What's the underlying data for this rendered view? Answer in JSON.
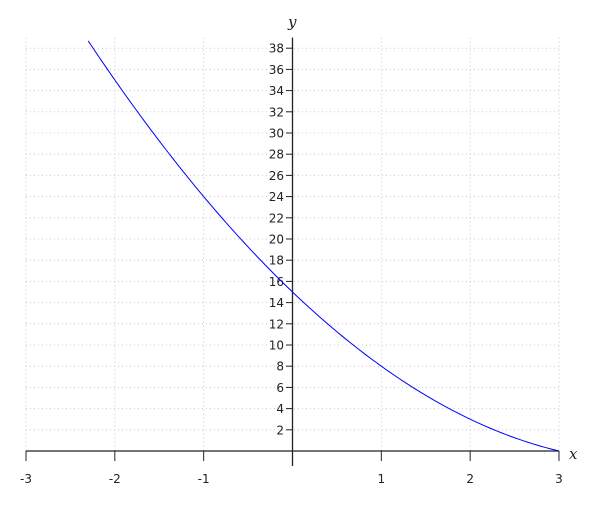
{
  "chart_data": {
    "type": "line",
    "title": "",
    "xlabel": "x",
    "ylabel": "y",
    "xlim": [
      -3,
      3
    ],
    "ylim": [
      0,
      39
    ],
    "grid": true,
    "x_ticks": [
      -3,
      -2,
      -1,
      1,
      2,
      3
    ],
    "y_ticks": [
      2,
      4,
      6,
      8,
      10,
      12,
      14,
      16,
      18,
      20,
      22,
      24,
      26,
      28,
      30,
      32,
      34,
      36,
      38
    ],
    "series": [
      {
        "color": "#0000ff",
        "x": [
          -2.3,
          -2,
          -1.5,
          -1,
          -0.5,
          0,
          0.5,
          1,
          1.5,
          2,
          2.5,
          3
        ],
        "y": [
          38.69,
          35,
          29.25,
          24,
          19.25,
          15,
          11.25,
          8,
          5.25,
          3,
          1.25,
          0
        ]
      }
    ]
  }
}
